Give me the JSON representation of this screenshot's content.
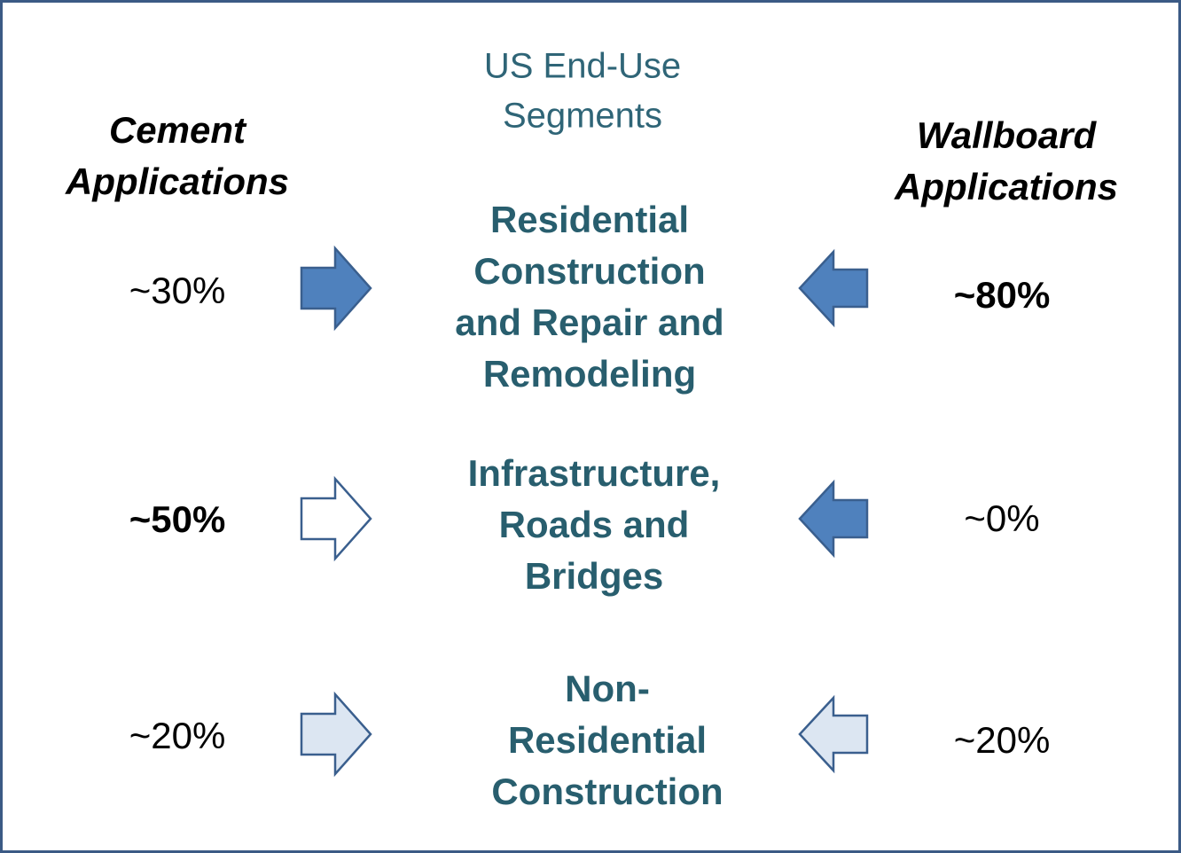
{
  "title": [
    "US End-Use",
    "Segments"
  ],
  "left_header": [
    "Cement",
    "Applications"
  ],
  "right_header": [
    "Wallboard",
    "Applications"
  ],
  "segments": [
    {
      "label": [
        "Residential",
        "Construction",
        "and Repair and",
        "Remodeling"
      ],
      "left": "~30%",
      "right": "~80%"
    },
    {
      "label": [
        "Infrastructure,",
        "Roads and",
        "Bridges"
      ],
      "left": "~50%",
      "right": "~0%"
    },
    {
      "label": [
        "Non-",
        "Residential",
        "Construction"
      ],
      "left": "~20%",
      "right": "~20%"
    }
  ]
}
